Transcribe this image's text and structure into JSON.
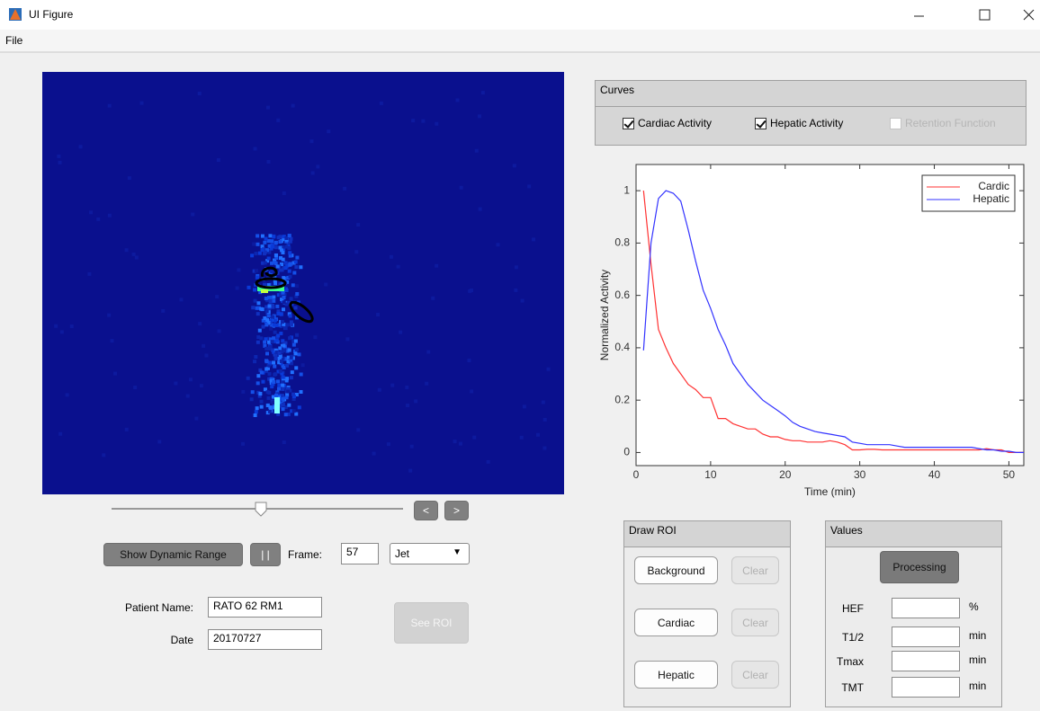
{
  "window": {
    "title": "UI Figure"
  },
  "menu": [
    "File"
  ],
  "curves_panel": {
    "title": "Curves",
    "checkboxes": [
      {
        "label": "Cardiac Activity",
        "checked": true,
        "enabled": true
      },
      {
        "label": "Hepatic Activity",
        "checked": true,
        "enabled": true
      },
      {
        "label": "Retention Function",
        "checked": false,
        "enabled": false
      }
    ]
  },
  "chart_data": {
    "type": "line",
    "xlabel": "Time (min)",
    "ylabel": "Normalized Activity",
    "x": [
      1,
      2,
      3,
      4,
      5,
      6,
      7,
      8,
      9,
      10,
      11,
      12,
      13,
      14,
      15,
      16,
      17,
      18,
      19,
      20,
      21,
      22,
      23,
      24,
      25,
      26,
      27,
      28,
      29,
      30,
      31,
      32,
      33,
      34,
      35,
      36,
      37,
      38,
      39,
      40,
      41,
      42,
      43,
      44,
      45,
      46,
      47,
      48,
      49,
      50,
      51,
      52
    ],
    "series": [
      {
        "name": "Cardic",
        "color": "#ff3333",
        "values": [
          1.0,
          0.72,
          0.47,
          0.4,
          0.34,
          0.3,
          0.26,
          0.24,
          0.21,
          0.21,
          0.13,
          0.13,
          0.11,
          0.1,
          0.09,
          0.09,
          0.07,
          0.06,
          0.06,
          0.05,
          0.045,
          0.045,
          0.04,
          0.04,
          0.04,
          0.045,
          0.04,
          0.03,
          0.01,
          0.01,
          0.012,
          0.012,
          0.01,
          0.01,
          0.01,
          0.01,
          0.01,
          0.01,
          0.01,
          0.01,
          0.01,
          0.01,
          0.01,
          0.01,
          0.01,
          0.01,
          0.015,
          0.01,
          0.01,
          0.0,
          0.0,
          0.0
        ]
      },
      {
        "name": "Hepatic",
        "color": "#3333ff",
        "values": [
          0.39,
          0.8,
          0.97,
          1.0,
          0.99,
          0.96,
          0.85,
          0.73,
          0.62,
          0.55,
          0.47,
          0.41,
          0.34,
          0.3,
          0.26,
          0.23,
          0.2,
          0.18,
          0.16,
          0.14,
          0.115,
          0.1,
          0.09,
          0.08,
          0.075,
          0.07,
          0.065,
          0.06,
          0.04,
          0.035,
          0.03,
          0.03,
          0.03,
          0.03,
          0.025,
          0.02,
          0.02,
          0.02,
          0.02,
          0.02,
          0.02,
          0.02,
          0.02,
          0.02,
          0.02,
          0.015,
          0.01,
          0.01,
          0.005,
          0.005,
          0.0,
          0.0
        ]
      }
    ],
    "xlim": [
      0,
      52
    ],
    "ylim": [
      -0.05,
      1.1
    ],
    "xticks": [
      0,
      10,
      20,
      30,
      40,
      50
    ],
    "yticks": [
      0,
      0.2,
      0.4,
      0.6,
      0.8,
      1
    ],
    "legend": "upper right"
  },
  "navigation": {
    "prev": "<",
    "next": ">"
  },
  "controls": {
    "dynamic_range": "Show Dynamic Range",
    "pause": "| |",
    "frame_label": "Frame:",
    "frame": "57",
    "colormap": "Jet"
  },
  "patient": {
    "name_label": "Patient Name:",
    "name": "RATO 62 RM1",
    "date_label": "Date",
    "date": "20170727",
    "see_roi": "See ROI"
  },
  "draw_roi": {
    "title": "Draw ROI",
    "rows": [
      {
        "button": "Background",
        "clear": "Clear"
      },
      {
        "button": "Cardiac",
        "clear": "Clear"
      },
      {
        "button": "Hepatic",
        "clear": "Clear"
      }
    ]
  },
  "values_panel": {
    "title": "Values",
    "button": "Processing",
    "rows": [
      {
        "label": "HEF",
        "unit": "%"
      },
      {
        "label": "T1/2",
        "unit": "min"
      },
      {
        "label": "Tmax",
        "unit": "min"
      },
      {
        "label": "TMT",
        "unit": "min"
      }
    ]
  }
}
